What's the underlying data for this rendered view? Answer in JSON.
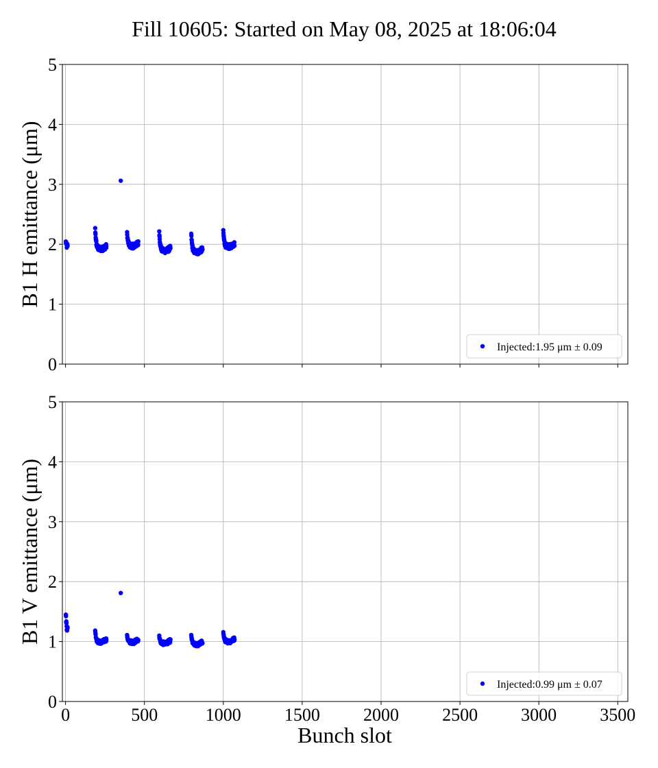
{
  "chart_data": {
    "title": "Fill 10605: Started on May 08, 2025 at 18:06:04",
    "xlabel": "Bunch slot",
    "x_ticks": [
      0,
      500,
      1000,
      1500,
      2000,
      2500,
      3000,
      3500
    ],
    "y_ticks": [
      0,
      1,
      2,
      3,
      4,
      5
    ],
    "xlim": [
      -20,
      3564
    ],
    "grid": true,
    "marker_color": "#0000ff",
    "subplots": [
      {
        "type": "scatter",
        "ylabel": "B1 H emittance (μm)",
        "ylim": [
          0,
          5
        ],
        "legend": {
          "placement": "lower-right",
          "label": "Injected:1.95 μm ± 0.09"
        },
        "outlier": {
          "x": 350,
          "y": 3.06
        },
        "trains": [
          {
            "start": 2,
            "bunches": 12,
            "spacing": 1,
            "first": 2.04,
            "settled": 1.93,
            "spread": 0.05
          },
          {
            "start": 188,
            "bunches": 72,
            "spacing": 1,
            "first": 2.26,
            "settled": 1.92,
            "spread": 0.04
          },
          {
            "start": 390,
            "bunches": 72,
            "spacing": 1,
            "first": 2.19,
            "settled": 1.97,
            "spread": 0.04
          },
          {
            "start": 594,
            "bunches": 72,
            "spacing": 1,
            "first": 2.22,
            "settled": 1.89,
            "spread": 0.04
          },
          {
            "start": 797,
            "bunches": 72,
            "spacing": 1,
            "first": 2.17,
            "settled": 1.87,
            "spread": 0.04
          },
          {
            "start": 1000,
            "bunches": 72,
            "spacing": 1,
            "first": 2.22,
            "settled": 1.96,
            "spread": 0.04
          }
        ]
      },
      {
        "type": "scatter",
        "ylabel": "B1 V emittance (μm)",
        "ylim": [
          0,
          5
        ],
        "legend": {
          "placement": "lower-right",
          "label": "Injected:0.99 μm ± 0.07"
        },
        "outlier": {
          "x": 350,
          "y": 1.81
        },
        "trains": [
          {
            "start": 2,
            "bunches": 12,
            "spacing": 1,
            "first": 1.45,
            "settled": 1.12,
            "spread": 0.06
          },
          {
            "start": 188,
            "bunches": 72,
            "spacing": 1,
            "first": 1.19,
            "settled": 0.99,
            "spread": 0.03
          },
          {
            "start": 390,
            "bunches": 72,
            "spacing": 1,
            "first": 1.1,
            "settled": 0.99,
            "spread": 0.03
          },
          {
            "start": 594,
            "bunches": 72,
            "spacing": 1,
            "first": 1.09,
            "settled": 0.97,
            "spread": 0.03
          },
          {
            "start": 797,
            "bunches": 72,
            "spacing": 1,
            "first": 1.1,
            "settled": 0.95,
            "spread": 0.03
          },
          {
            "start": 1000,
            "bunches": 72,
            "spacing": 1,
            "first": 1.15,
            "settled": 1.0,
            "spread": 0.03
          }
        ]
      }
    ]
  }
}
